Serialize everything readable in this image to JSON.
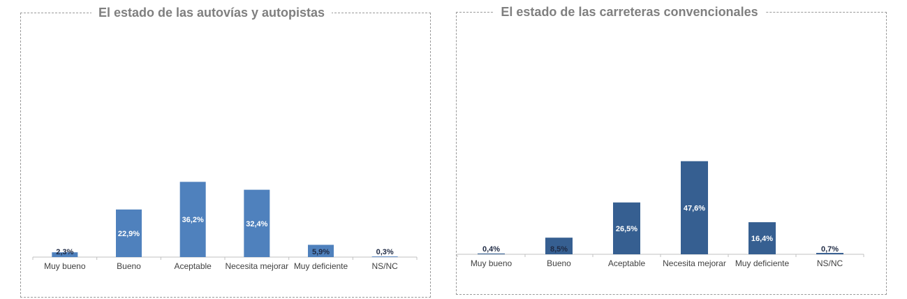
{
  "chart_data": [
    {
      "type": "bar",
      "title": "El estado de las autovías y autopistas",
      "categories": [
        "Muy bueno",
        "Bueno",
        "Aceptable",
        "Necesita mejorar",
        "Muy deficiente",
        "NS/NC"
      ],
      "values": [
        2.3,
        22.9,
        36.2,
        32.4,
        5.9,
        0.3
      ],
      "value_labels": [
        "2,3%",
        "22,9%",
        "36,2%",
        "32,4%",
        "5,9%",
        "0,3%"
      ],
      "color": "#4f81bd",
      "ylim": [
        0,
        100
      ],
      "grid": false,
      "legend": "none"
    },
    {
      "type": "bar",
      "title": "El estado de las carreteras convencionales",
      "categories": [
        "Muy bueno",
        "Bueno",
        "Aceptable",
        "Necesita mejorar",
        "Muy deficiente",
        "NS/NC"
      ],
      "values": [
        0.4,
        8.5,
        26.5,
        47.6,
        16.4,
        0.7
      ],
      "value_labels": [
        "0,4%",
        "8,5%",
        "26,5%",
        "47,6%",
        "16,4%",
        "0,7%"
      ],
      "color": "#365f91",
      "ylim": [
        0,
        100
      ],
      "grid": false,
      "legend": "none"
    }
  ]
}
